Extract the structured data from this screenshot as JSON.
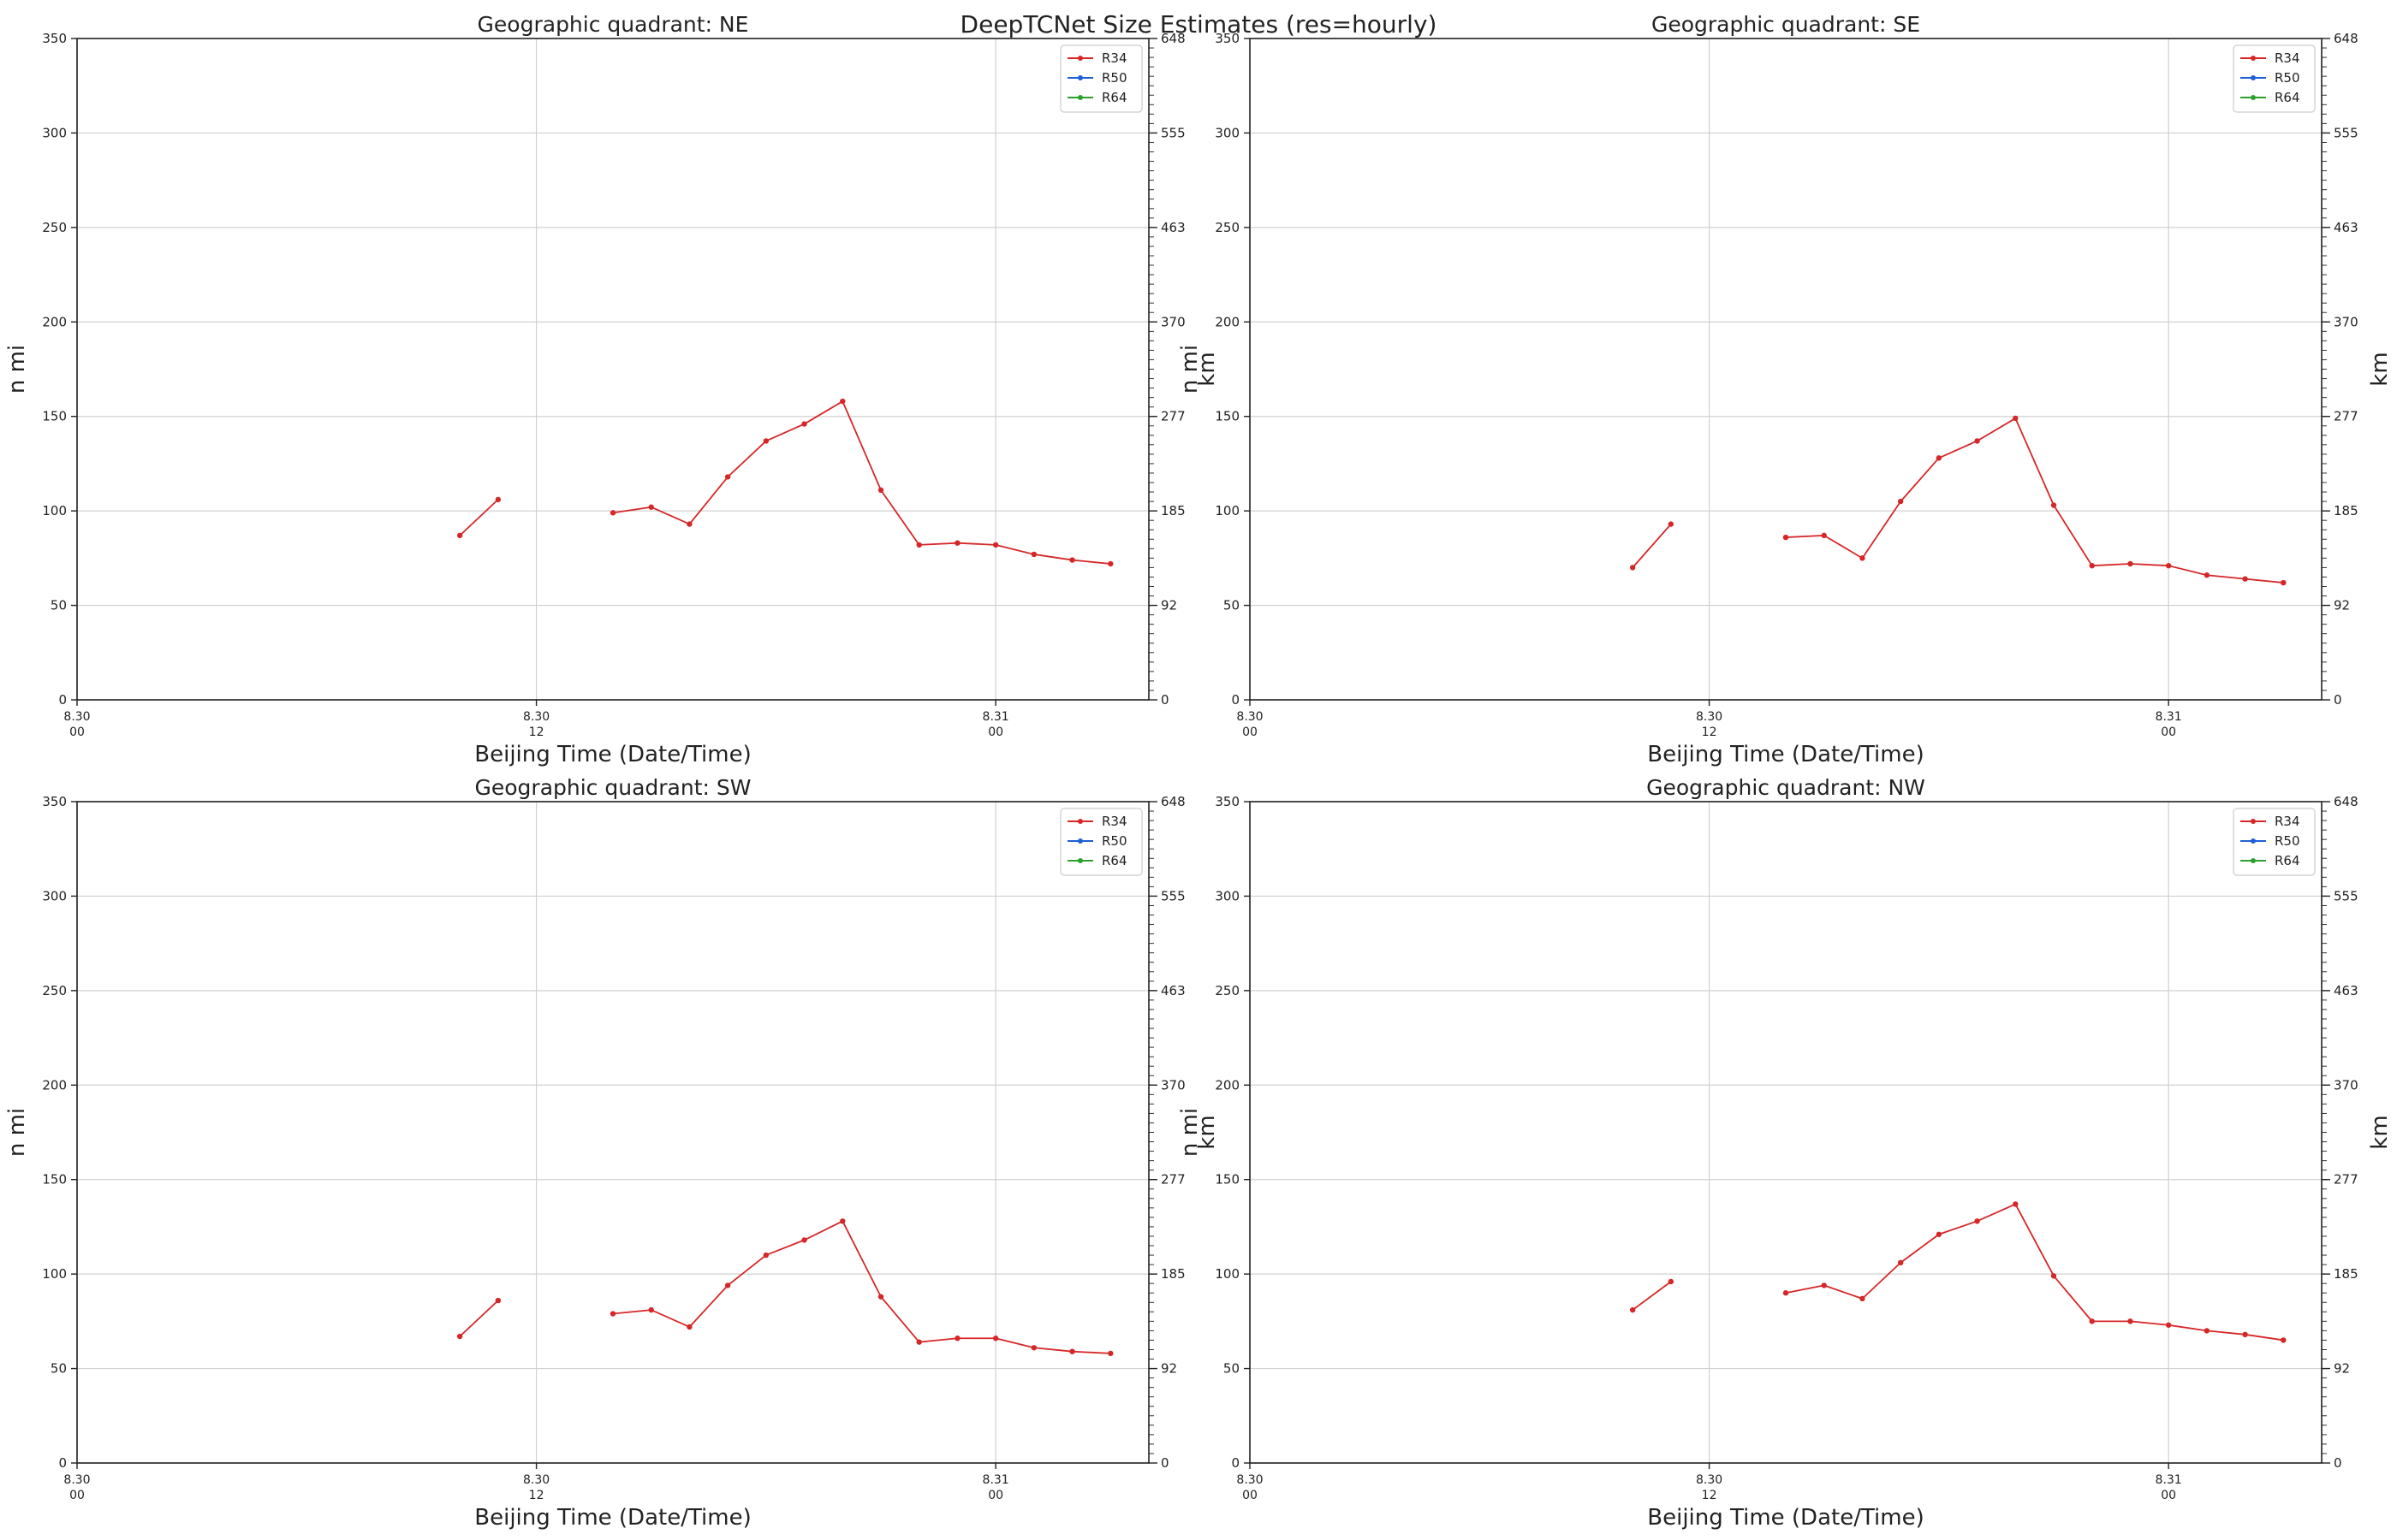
{
  "figure": {
    "title": "DeepTCNet Size Estimates (res=hourly)"
  },
  "chart_data": [
    {
      "type": "line",
      "title": "Geographic quadrant: NE",
      "xlabel": "Beijing Time (Date/Time)",
      "ylabel": "n mi",
      "ylabel_right": "km",
      "ylim": [
        0,
        350
      ],
      "yticks": [
        0,
        50,
        100,
        150,
        200,
        250,
        300,
        350
      ],
      "yticks_right": [
        "0",
        "92",
        "185",
        "277",
        "370",
        "463",
        "555",
        "648"
      ],
      "xlim": [
        0,
        28
      ],
      "xticks": [
        {
          "x": 0,
          "label": [
            "8.30",
            "00"
          ]
        },
        {
          "x": 12,
          "label": [
            "8.30",
            "12"
          ]
        },
        {
          "x": 24,
          "label": [
            "8.31",
            "00"
          ]
        }
      ],
      "grid": true,
      "legend_position": "top-right",
      "series": [
        {
          "name": "R34",
          "color": "#d62728",
          "points": [
            [
              10,
              87
            ],
            [
              11,
              106
            ],
            null,
            [
              14,
              99
            ],
            [
              15,
              102
            ],
            [
              16,
              93
            ],
            [
              17,
              118
            ],
            [
              18,
              137
            ],
            [
              19,
              146
            ],
            [
              20,
              158
            ],
            [
              21,
              111
            ],
            [
              22,
              82
            ],
            [
              23,
              83
            ],
            [
              24,
              82
            ],
            [
              25,
              77
            ],
            [
              26,
              74
            ],
            [
              27,
              72
            ]
          ]
        },
        {
          "name": "R50",
          "color": "#1f5fd6",
          "points": []
        },
        {
          "name": "R64",
          "color": "#2ca02c",
          "points": []
        }
      ]
    },
    {
      "type": "line",
      "title": "Geographic quadrant: SE",
      "xlabel": "Beijing Time (Date/Time)",
      "ylabel": "n mi",
      "ylabel_right": "km",
      "ylim": [
        0,
        350
      ],
      "yticks": [
        0,
        50,
        100,
        150,
        200,
        250,
        300,
        350
      ],
      "yticks_right": [
        "0",
        "92",
        "185",
        "277",
        "370",
        "463",
        "555",
        "648"
      ],
      "xlim": [
        0,
        28
      ],
      "xticks": [
        {
          "x": 0,
          "label": [
            "8.30",
            "00"
          ]
        },
        {
          "x": 12,
          "label": [
            "8.30",
            "12"
          ]
        },
        {
          "x": 24,
          "label": [
            "8.31",
            "00"
          ]
        }
      ],
      "grid": true,
      "legend_position": "top-right",
      "series": [
        {
          "name": "R34",
          "color": "#d62728",
          "points": [
            [
              10,
              70
            ],
            [
              11,
              93
            ],
            null,
            [
              14,
              86
            ],
            [
              15,
              87
            ],
            [
              16,
              75
            ],
            [
              17,
              105
            ],
            [
              18,
              128
            ],
            [
              19,
              137
            ],
            [
              20,
              149
            ],
            [
              21,
              103
            ],
            [
              22,
              71
            ],
            [
              23,
              72
            ],
            [
              24,
              71
            ],
            [
              25,
              66
            ],
            [
              26,
              64
            ],
            [
              27,
              62
            ]
          ]
        },
        {
          "name": "R50",
          "color": "#1f5fd6",
          "points": []
        },
        {
          "name": "R64",
          "color": "#2ca02c",
          "points": []
        }
      ]
    },
    {
      "type": "line",
      "title": "Geographic quadrant: SW",
      "xlabel": "Beijing Time (Date/Time)",
      "ylabel": "n mi",
      "ylabel_right": "km",
      "ylim": [
        0,
        350
      ],
      "yticks": [
        0,
        50,
        100,
        150,
        200,
        250,
        300,
        350
      ],
      "yticks_right": [
        "0",
        "92",
        "185",
        "277",
        "370",
        "463",
        "555",
        "648"
      ],
      "xlim": [
        0,
        28
      ],
      "xticks": [
        {
          "x": 0,
          "label": [
            "8.30",
            "00"
          ]
        },
        {
          "x": 12,
          "label": [
            "8.30",
            "12"
          ]
        },
        {
          "x": 24,
          "label": [
            "8.31",
            "00"
          ]
        }
      ],
      "grid": true,
      "legend_position": "top-right",
      "series": [
        {
          "name": "R34",
          "color": "#d62728",
          "points": [
            [
              10,
              67
            ],
            [
              11,
              86
            ],
            null,
            [
              14,
              79
            ],
            [
              15,
              81
            ],
            [
              16,
              72
            ],
            [
              17,
              94
            ],
            [
              18,
              110
            ],
            [
              19,
              118
            ],
            [
              20,
              128
            ],
            [
              21,
              88
            ],
            [
              22,
              64
            ],
            [
              23,
              66
            ],
            [
              24,
              66
            ],
            [
              25,
              61
            ],
            [
              26,
              59
            ],
            [
              27,
              58
            ]
          ]
        },
        {
          "name": "R50",
          "color": "#1f5fd6",
          "points": []
        },
        {
          "name": "R64",
          "color": "#2ca02c",
          "points": []
        }
      ]
    },
    {
      "type": "line",
      "title": "Geographic quadrant: NW",
      "xlabel": "Beijing Time (Date/Time)",
      "ylabel": "n mi",
      "ylabel_right": "km",
      "ylim": [
        0,
        350
      ],
      "yticks": [
        0,
        50,
        100,
        150,
        200,
        250,
        300,
        350
      ],
      "yticks_right": [
        "0",
        "92",
        "185",
        "277",
        "370",
        "463",
        "555",
        "648"
      ],
      "xlim": [
        0,
        28
      ],
      "xticks": [
        {
          "x": 0,
          "label": [
            "8.30",
            "00"
          ]
        },
        {
          "x": 12,
          "label": [
            "8.30",
            "12"
          ]
        },
        {
          "x": 24,
          "label": [
            "8.31",
            "00"
          ]
        }
      ],
      "grid": true,
      "legend_position": "top-right",
      "series": [
        {
          "name": "R34",
          "color": "#d62728",
          "points": [
            [
              10,
              81
            ],
            [
              11,
              96
            ],
            null,
            [
              14,
              90
            ],
            [
              15,
              94
            ],
            [
              16,
              87
            ],
            [
              17,
              106
            ],
            [
              18,
              121
            ],
            [
              19,
              128
            ],
            [
              20,
              137
            ],
            [
              21,
              99
            ],
            [
              22,
              75
            ],
            [
              23,
              75
            ],
            [
              24,
              73
            ],
            [
              25,
              70
            ],
            [
              26,
              68
            ],
            [
              27,
              65
            ]
          ]
        },
        {
          "name": "R50",
          "color": "#1f5fd6",
          "points": []
        },
        {
          "name": "R64",
          "color": "#2ca02c",
          "points": []
        }
      ]
    }
  ]
}
